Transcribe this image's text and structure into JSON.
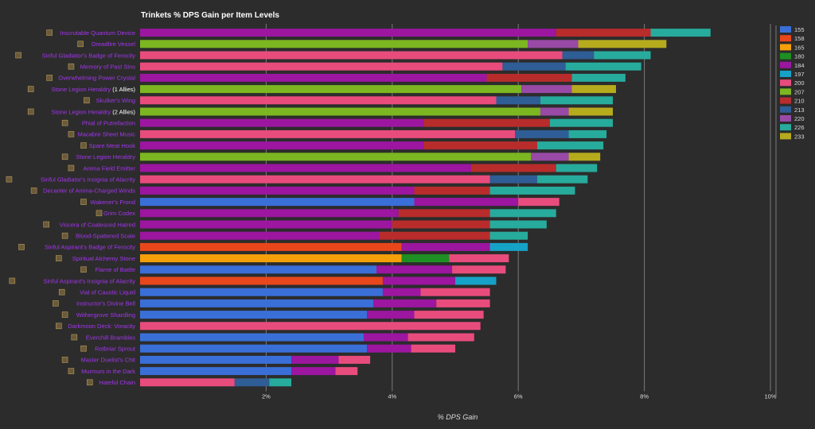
{
  "chart_data": {
    "type": "bar",
    "stacked": true,
    "orientation": "horizontal",
    "title": "Trinkets % DPS Gain per Item Levels",
    "xlabel": "% DPS Gain",
    "xlim": [
      0,
      10
    ],
    "x_ticks": [
      "2%",
      "4%",
      "6%",
      "8%",
      "10%"
    ],
    "x_tick_values": [
      2,
      4,
      6,
      8,
      10
    ],
    "grid": true,
    "legend_position": "right",
    "legend": [
      {
        "name": "155",
        "color": "#3a6fd8"
      },
      {
        "name": "158",
        "color": "#e8471c"
      },
      {
        "name": "165",
        "color": "#f5a00a"
      },
      {
        "name": "180",
        "color": "#1e8f22"
      },
      {
        "name": "184",
        "color": "#9c16a0"
      },
      {
        "name": "197",
        "color": "#16a2c6"
      },
      {
        "name": "200",
        "color": "#e84c7d"
      },
      {
        "name": "207",
        "color": "#7cb621"
      },
      {
        "name": "210",
        "color": "#b82c2c"
      },
      {
        "name": "213",
        "color": "#2f5d95"
      },
      {
        "name": "220",
        "color": "#984aa6"
      },
      {
        "name": "226",
        "color": "#27ab9c"
      },
      {
        "name": "233",
        "color": "#b6ab1d"
      }
    ],
    "items": [
      {
        "name": "Inscrutable Quantum Device",
        "color": "#a335ee",
        "segments": [
          [
            "184",
            6.6
          ],
          [
            "210",
            8.1
          ],
          [
            "226",
            9.05
          ]
        ]
      },
      {
        "name": "Dreadfire Vessel",
        "color": "#a335ee",
        "segments": [
          [
            "207",
            6.15
          ],
          [
            "220",
            6.95
          ],
          [
            "233",
            8.35
          ]
        ]
      },
      {
        "name": "Sinful Gladiator's Badge of Ferocity",
        "color": "#a335ee",
        "segments": [
          [
            "200",
            6.7
          ],
          [
            "213",
            7.2
          ],
          [
            "226",
            8.1
          ]
        ]
      },
      {
        "name": "Memory of Past Sins",
        "color": "#a335ee",
        "segments": [
          [
            "200",
            5.75
          ],
          [
            "213",
            6.75
          ],
          [
            "226",
            7.95
          ]
        ]
      },
      {
        "name": "Overwhelming Power Crystal",
        "color": "#a335ee",
        "segments": [
          [
            "184",
            5.5
          ],
          [
            "210",
            6.85
          ],
          [
            "226",
            7.7
          ]
        ]
      },
      {
        "name": "Stone Legion Heraldry",
        "suffix": " (1 Allies)",
        "color": "#a335ee",
        "segments": [
          [
            "207",
            6.05
          ],
          [
            "220",
            6.85
          ],
          [
            "233",
            7.55
          ]
        ]
      },
      {
        "name": "Skulker's Wing",
        "color": "#a335ee",
        "segments": [
          [
            "200",
            5.65
          ],
          [
            "213",
            6.35
          ],
          [
            "226",
            7.5
          ]
        ]
      },
      {
        "name": "Stone Legion Heraldry",
        "suffix": " (2 Allies)",
        "color": "#a335ee",
        "segments": [
          [
            "207",
            6.35
          ],
          [
            "220",
            6.8
          ],
          [
            "233",
            7.5
          ]
        ]
      },
      {
        "name": "Phial of Putrefaction",
        "color": "#a335ee",
        "segments": [
          [
            "184",
            4.5
          ],
          [
            "210",
            6.5
          ],
          [
            "226",
            7.5
          ]
        ]
      },
      {
        "name": "Macabre Sheet Music",
        "color": "#a335ee",
        "segments": [
          [
            "200",
            5.95
          ],
          [
            "213",
            6.8
          ],
          [
            "226",
            7.4
          ]
        ]
      },
      {
        "name": "Spare Meat Hook",
        "color": "#a335ee",
        "segments": [
          [
            "184",
            4.5
          ],
          [
            "210",
            6.3
          ],
          [
            "226",
            7.35
          ]
        ]
      },
      {
        "name": "Stone Legion Heraldry",
        "color": "#a335ee",
        "segments": [
          [
            "207",
            6.2
          ],
          [
            "220",
            6.8
          ],
          [
            "233",
            7.3
          ]
        ]
      },
      {
        "name": "Anima Field Emitter",
        "color": "#a335ee",
        "segments": [
          [
            "184",
            5.25
          ],
          [
            "210",
            6.6
          ],
          [
            "226",
            7.25
          ]
        ]
      },
      {
        "name": "Sinful Gladiator's Insignia of Alacrity",
        "color": "#a335ee",
        "segments": [
          [
            "200",
            5.55
          ],
          [
            "213",
            6.3
          ],
          [
            "226",
            7.1
          ]
        ]
      },
      {
        "name": "Decanter of Anima-Charged Winds",
        "color": "#a335ee",
        "segments": [
          [
            "184",
            4.35
          ],
          [
            "210",
            5.55
          ],
          [
            "226",
            6.9
          ]
        ]
      },
      {
        "name": "Wakener's Frond",
        "color": "#a335ee",
        "segments": [
          [
            "155",
            4.35
          ],
          [
            "184",
            6.0
          ],
          [
            "200",
            6.65
          ]
        ]
      },
      {
        "name": "Grim Codex",
        "color": "#a335ee",
        "segments": [
          [
            "184",
            4.1
          ],
          [
            "210",
            5.55
          ],
          [
            "226",
            6.6
          ]
        ]
      },
      {
        "name": "Viscera of Coalesced Hatred",
        "color": "#a335ee",
        "segments": [
          [
            "184",
            4.0
          ],
          [
            "210",
            5.55
          ],
          [
            "226",
            6.45
          ]
        ]
      },
      {
        "name": "Blood-Spattered Scale",
        "color": "#a335ee",
        "segments": [
          [
            "184",
            3.8
          ],
          [
            "210",
            5.55
          ],
          [
            "226",
            6.15
          ]
        ]
      },
      {
        "name": "Sinful Aspirant's Badge of Ferocity",
        "color": "#a335ee",
        "segments": [
          [
            "158",
            4.15
          ],
          [
            "184",
            5.55
          ],
          [
            "197",
            6.15
          ]
        ]
      },
      {
        "name": "Spiritual Alchemy Stone",
        "color": "#a335ee",
        "segments": [
          [
            "165",
            4.15
          ],
          [
            "180",
            4.9
          ],
          [
            "200",
            5.85
          ]
        ]
      },
      {
        "name": "Flame of Battle",
        "color": "#a335ee",
        "segments": [
          [
            "155",
            3.75
          ],
          [
            "184",
            4.95
          ],
          [
            "200",
            5.8
          ]
        ]
      },
      {
        "name": "Sinful Aspirant's Insignia of Alacrity",
        "color": "#a335ee",
        "segments": [
          [
            "158",
            3.85
          ],
          [
            "184",
            5.0
          ],
          [
            "197",
            5.65
          ]
        ]
      },
      {
        "name": "Vial of Caustic Liquid",
        "color": "#a335ee",
        "segments": [
          [
            "155",
            3.85
          ],
          [
            "184",
            4.45
          ],
          [
            "200",
            5.55
          ]
        ]
      },
      {
        "name": "Instructor's Divine Bell",
        "color": "#a335ee",
        "segments": [
          [
            "155",
            3.7
          ],
          [
            "184",
            4.7
          ],
          [
            "200",
            5.55
          ]
        ]
      },
      {
        "name": "Withergrove Shardling",
        "color": "#a335ee",
        "segments": [
          [
            "155",
            3.6
          ],
          [
            "184",
            4.35
          ],
          [
            "200",
            5.45
          ]
        ]
      },
      {
        "name": "Darkmoon Deck: Voracity",
        "color": "#a335ee",
        "segments": [
          [
            "200",
            5.4
          ]
        ]
      },
      {
        "name": "Everchill Brambles",
        "color": "#a335ee",
        "segments": [
          [
            "155",
            3.55
          ],
          [
            "184",
            4.25
          ],
          [
            "200",
            5.3
          ]
        ]
      },
      {
        "name": "Rotbriar Sprout",
        "color": "#a335ee",
        "segments": [
          [
            "155",
            3.6
          ],
          [
            "184",
            4.3
          ],
          [
            "200",
            5.0
          ]
        ]
      },
      {
        "name": "Master Duelist's Chit",
        "color": "#a335ee",
        "segments": [
          [
            "155",
            2.4
          ],
          [
            "184",
            3.15
          ],
          [
            "200",
            3.65
          ]
        ]
      },
      {
        "name": "Murmurs in the Dark",
        "color": "#a335ee",
        "segments": [
          [
            "155",
            2.4
          ],
          [
            "184",
            3.1
          ],
          [
            "200",
            3.45
          ]
        ]
      },
      {
        "name": "Hateful Chain",
        "color": "#a335ee",
        "segments": [
          [
            "200",
            1.5
          ],
          [
            "213",
            2.05
          ],
          [
            "226",
            2.4
          ]
        ]
      }
    ]
  }
}
